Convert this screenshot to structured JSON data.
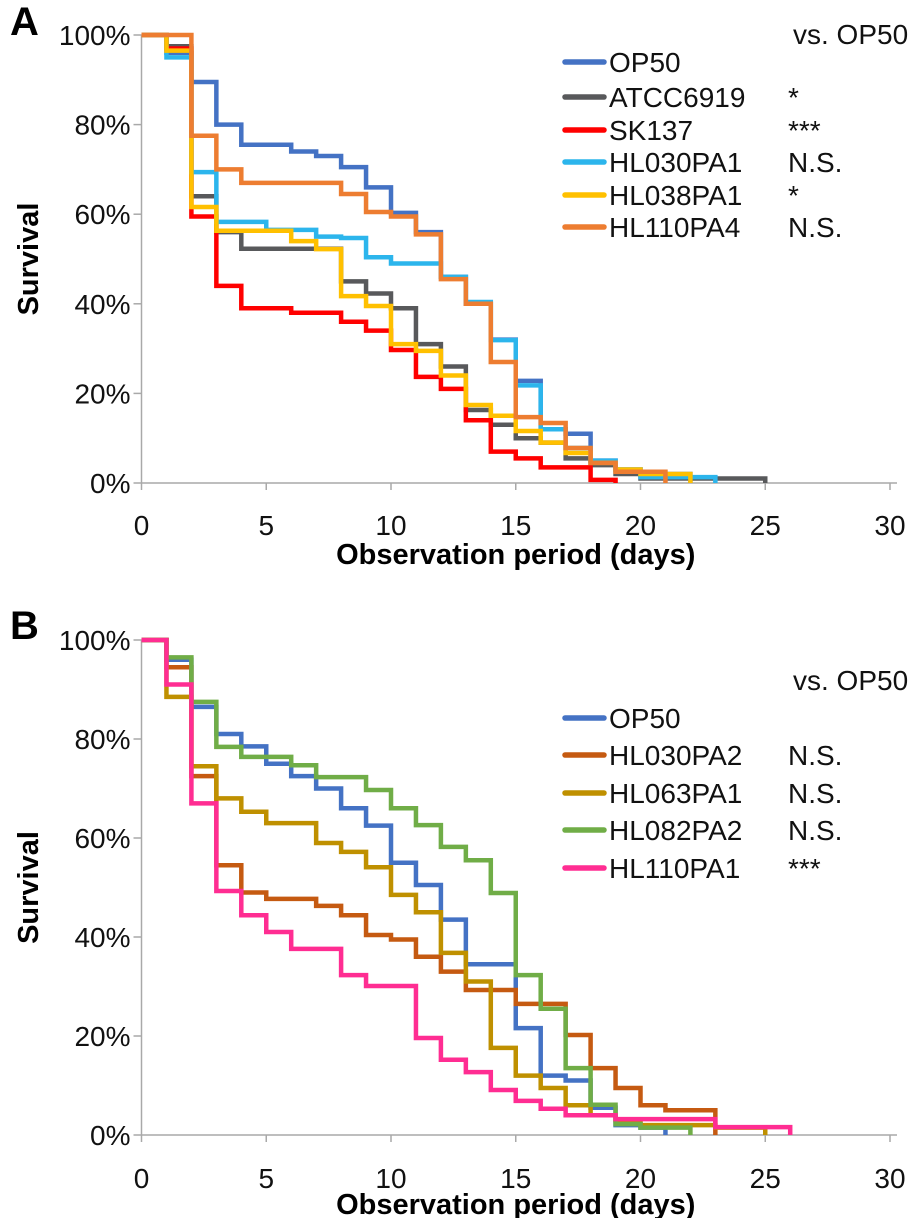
{
  "page": {
    "background": "#ffffff"
  },
  "chart_data": [
    {
      "type": "line",
      "step": "post",
      "panel_label": "A",
      "xlabel": "Observation period (days)",
      "ylabel": "Survival",
      "legend_header": "vs. OP50",
      "legend_position": "top-right-inside",
      "grid": false,
      "xlim": [
        0,
        30
      ],
      "ylim": [
        0,
        100
      ],
      "xticks": [
        0,
        5,
        10,
        15,
        20,
        25,
        30
      ],
      "yticks": [
        0,
        20,
        40,
        60,
        80,
        100
      ],
      "ytick_suffix": "%",
      "axis_color": "#A9A9A9",
      "series": [
        {
          "name": "OP50",
          "color": "#4472C4",
          "significance": "",
          "points": [
            [
              0,
              100
            ],
            [
              1,
              96
            ],
            [
              2,
              89.5
            ],
            [
              3,
              80
            ],
            [
              4,
              75.5
            ],
            [
              6,
              74
            ],
            [
              7,
              73
            ],
            [
              8,
              70.5
            ],
            [
              9,
              66
            ],
            [
              10,
              60.3
            ],
            [
              11,
              56
            ],
            [
              12,
              46
            ],
            [
              13,
              40
            ],
            [
              14,
              32
            ],
            [
              15,
              22.8
            ],
            [
              16,
              12
            ],
            [
              17,
              11
            ],
            [
              18,
              5
            ],
            [
              19,
              3
            ],
            [
              20,
              2
            ],
            [
              22,
              0
            ]
          ]
        },
        {
          "name": "ATCC6919",
          "color": "#58595B",
          "significance": "*",
          "points": [
            [
              0,
              100
            ],
            [
              1,
              97.5
            ],
            [
              2,
              64
            ],
            [
              3,
              56
            ],
            [
              4,
              52.3
            ],
            [
              8,
              45
            ],
            [
              9,
              42.3
            ],
            [
              10,
              39
            ],
            [
              11,
              31
            ],
            [
              12,
              26
            ],
            [
              13,
              16.3
            ],
            [
              14,
              13
            ],
            [
              15,
              10
            ],
            [
              16,
              9
            ],
            [
              17,
              5.5
            ],
            [
              18,
              4
            ],
            [
              19,
              2
            ],
            [
              20,
              1
            ],
            [
              25,
              0
            ]
          ]
        },
        {
          "name": "SK137",
          "color": "#FF0000",
          "significance": "***",
          "points": [
            [
              0,
              100
            ],
            [
              1,
              97
            ],
            [
              2,
              59.5
            ],
            [
              3,
              44
            ],
            [
              4,
              39
            ],
            [
              6,
              38
            ],
            [
              8,
              36
            ],
            [
              9,
              34
            ],
            [
              10,
              29.7
            ],
            [
              11,
              23.7
            ],
            [
              12,
              21
            ],
            [
              13,
              14
            ],
            [
              14,
              7
            ],
            [
              15,
              5.5
            ],
            [
              16,
              3.5
            ],
            [
              18,
              0.7
            ],
            [
              19,
              0
            ]
          ]
        },
        {
          "name": "HL030PA1",
          "color": "#2CB5EC",
          "significance": "N.S.",
          "points": [
            [
              0,
              100
            ],
            [
              1,
              95
            ],
            [
              2,
              69.4
            ],
            [
              3,
              58.3
            ],
            [
              5,
              56.5
            ],
            [
              7,
              55
            ],
            [
              8,
              54.7
            ],
            [
              9,
              50.4
            ],
            [
              10,
              49
            ],
            [
              12,
              46
            ],
            [
              13,
              40.4
            ],
            [
              14,
              31.9
            ],
            [
              15,
              21.8
            ],
            [
              16,
              12
            ],
            [
              17,
              7.8
            ],
            [
              18,
              5
            ],
            [
              19,
              3
            ],
            [
              20,
              1.3
            ],
            [
              23,
              0
            ]
          ]
        },
        {
          "name": "HL038PA1",
          "color": "#FFC000",
          "significance": "*",
          "points": [
            [
              0,
              100
            ],
            [
              1,
              96.5
            ],
            [
              2,
              61.6
            ],
            [
              3,
              56.3
            ],
            [
              6,
              54
            ],
            [
              7,
              52.2
            ],
            [
              8,
              41.7
            ],
            [
              9,
              39.5
            ],
            [
              10,
              31
            ],
            [
              11,
              29.5
            ],
            [
              12,
              24
            ],
            [
              13,
              17.4
            ],
            [
              14,
              15
            ],
            [
              15,
              11.6
            ],
            [
              16,
              9
            ],
            [
              17,
              6.7
            ],
            [
              18,
              4.5
            ],
            [
              19,
              3
            ],
            [
              20,
              2
            ],
            [
              22,
              0
            ]
          ]
        },
        {
          "name": "HL110PA4",
          "color": "#ED7D31",
          "significance": "N.S.",
          "points": [
            [
              0,
              100
            ],
            [
              2,
              77.5
            ],
            [
              3,
              70
            ],
            [
              4,
              67
            ],
            [
              8,
              64.5
            ],
            [
              9,
              60.5
            ],
            [
              10,
              59.5
            ],
            [
              11,
              55.5
            ],
            [
              12,
              45.5
            ],
            [
              13,
              40
            ],
            [
              14,
              27
            ],
            [
              15,
              14.7
            ],
            [
              16,
              13.4
            ],
            [
              17,
              7.8
            ],
            [
              18,
              4.5
            ],
            [
              19,
              2.5
            ],
            [
              21,
              0
            ]
          ]
        }
      ]
    },
    {
      "type": "line",
      "step": "post",
      "panel_label": "B",
      "xlabel": "Observation period (days)",
      "ylabel": "Survival",
      "legend_header": "vs. OP50",
      "legend_position": "top-right-inside",
      "grid": false,
      "xlim": [
        0,
        30
      ],
      "ylim": [
        0,
        100
      ],
      "xticks": [
        0,
        5,
        10,
        15,
        20,
        25,
        30
      ],
      "yticks": [
        0,
        20,
        40,
        60,
        80,
        100
      ],
      "ytick_suffix": "%",
      "axis_color": "#A9A9A9",
      "series": [
        {
          "name": "OP50",
          "color": "#4472C4",
          "significance": "",
          "points": [
            [
              0,
              100
            ],
            [
              1,
              96
            ],
            [
              2,
              86.5
            ],
            [
              3,
              81
            ],
            [
              4,
              78.5
            ],
            [
              5,
              75
            ],
            [
              6,
              72.5
            ],
            [
              7,
              70
            ],
            [
              8,
              66
            ],
            [
              9,
              62.5
            ],
            [
              10,
              55
            ],
            [
              11,
              50.5
            ],
            [
              12,
              43.5
            ],
            [
              13,
              34.5
            ],
            [
              15,
              21.6
            ],
            [
              16,
              12
            ],
            [
              17,
              11
            ],
            [
              18,
              5.5
            ],
            [
              19,
              2
            ],
            [
              20,
              1.5
            ],
            [
              21,
              0
            ]
          ]
        },
        {
          "name": "HL030PA2",
          "color": "#C55A11",
          "significance": "N.S.",
          "points": [
            [
              0,
              100
            ],
            [
              1,
              94.5
            ],
            [
              2,
              72.5
            ],
            [
              3,
              54.5
            ],
            [
              4,
              49
            ],
            [
              5,
              47.7
            ],
            [
              7,
              46.3
            ],
            [
              8,
              44.4
            ],
            [
              9,
              40.4
            ],
            [
              10,
              39.5
            ],
            [
              11,
              36
            ],
            [
              12,
              33
            ],
            [
              13,
              29.3
            ],
            [
              15,
              26.5
            ],
            [
              17,
              20.2
            ],
            [
              18,
              13.5
            ],
            [
              19,
              9.5
            ],
            [
              20,
              6
            ],
            [
              21,
              5
            ],
            [
              23,
              0
            ]
          ]
        },
        {
          "name": "HL063PA1",
          "color": "#BF9000",
          "significance": "N.S.",
          "points": [
            [
              0,
              100
            ],
            [
              1,
              88.5
            ],
            [
              2,
              74.5
            ],
            [
              3,
              68
            ],
            [
              4,
              65.3
            ],
            [
              5,
              63
            ],
            [
              7,
              59
            ],
            [
              8,
              57.2
            ],
            [
              9,
              54.1
            ],
            [
              10,
              48.5
            ],
            [
              11,
              45
            ],
            [
              12,
              36.8
            ],
            [
              13,
              31
            ],
            [
              14,
              17.6
            ],
            [
              15,
              12
            ],
            [
              16,
              9.5
            ],
            [
              17,
              6
            ],
            [
              18,
              4
            ],
            [
              19,
              3
            ],
            [
              20,
              2
            ],
            [
              23,
              1.5
            ],
            [
              25,
              0
            ]
          ]
        },
        {
          "name": "HL082PA2",
          "color": "#70AD47",
          "significance": "N.S.",
          "points": [
            [
              0,
              100
            ],
            [
              1,
              96.5
            ],
            [
              2,
              87.5
            ],
            [
              3,
              78.4
            ],
            [
              4,
              76.4
            ],
            [
              6,
              74.7
            ],
            [
              7,
              72.3
            ],
            [
              9,
              69.7
            ],
            [
              10,
              66
            ],
            [
              11,
              62.6
            ],
            [
              12,
              58.2
            ],
            [
              13,
              55.5
            ],
            [
              14,
              48.9
            ],
            [
              15,
              32.3
            ],
            [
              16,
              25.5
            ],
            [
              17,
              13.5
            ],
            [
              18,
              6.1
            ],
            [
              19,
              2.2
            ],
            [
              20,
              1.5
            ],
            [
              22,
              0
            ]
          ]
        },
        {
          "name": "HL110PA1",
          "color": "#FF2D92",
          "significance": "***",
          "points": [
            [
              0,
              100
            ],
            [
              1,
              91
            ],
            [
              2,
              67
            ],
            [
              3,
              49.3
            ],
            [
              4,
              44.4
            ],
            [
              5,
              41
            ],
            [
              6,
              37.6
            ],
            [
              8,
              32.3
            ],
            [
              9,
              30.1
            ],
            [
              11,
              19.6
            ],
            [
              12,
              15.2
            ],
            [
              13,
              12.7
            ],
            [
              14,
              9.1
            ],
            [
              15,
              6.9
            ],
            [
              16,
              5.3
            ],
            [
              17,
              4
            ],
            [
              19,
              3.2
            ],
            [
              23,
              1.6
            ],
            [
              26,
              0
            ]
          ]
        }
      ]
    }
  ]
}
